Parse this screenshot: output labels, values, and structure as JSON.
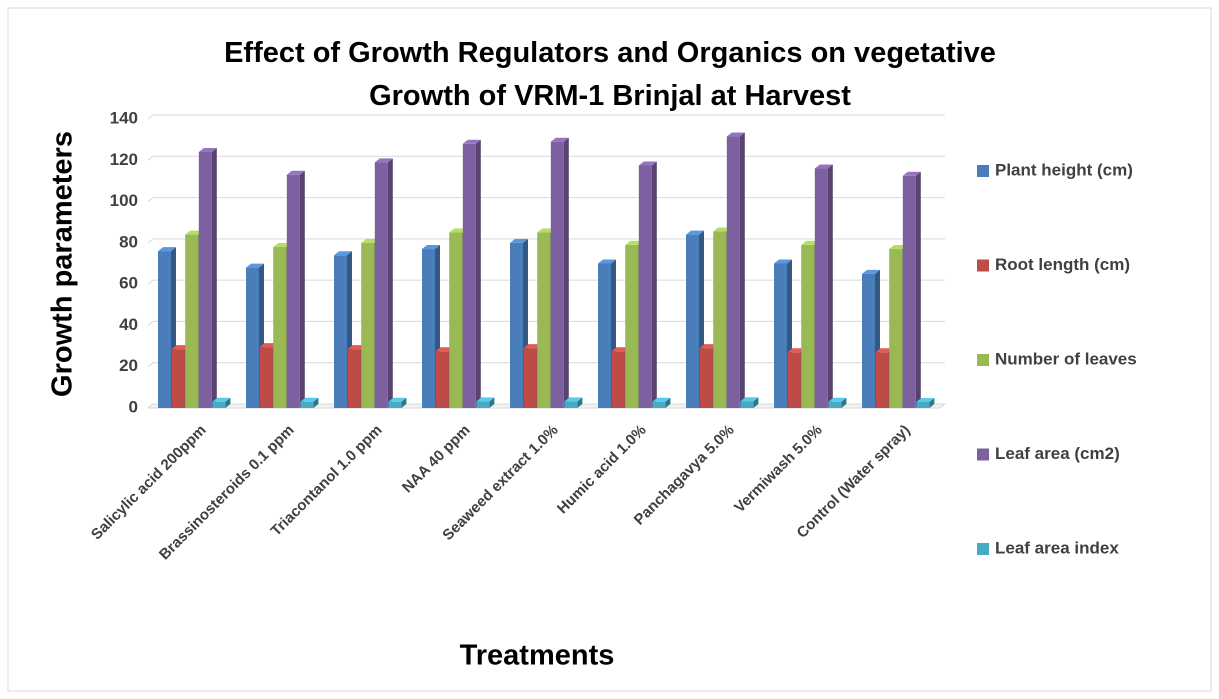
{
  "chart_data": {
    "type": "bar3d",
    "title": "Effect of Growth Regulators and Organics on vegetative Growth of VRM-1 Brinjal at Harvest",
    "x_label": "Treatments",
    "y_label": "Growth parameters",
    "categories": [
      "Salicylic acid 200ppm",
      "Brassinosteroids 0.1 ppm",
      "Triacontanol 1.0 ppm",
      "NAA 40 ppm",
      "Seaweed extract 1.0%",
      "Humic acid 1.0%",
      "Panchagavya 5.0%",
      "Vermiwash 5.0%",
      "Control (Water spray)"
    ],
    "series": [
      {
        "name": "Plant height (cm)",
        "color": "#4a7ebb",
        "values": [
          76,
          68,
          74,
          77,
          80,
          70,
          84,
          70,
          65
        ]
      },
      {
        "name": "Root length (cm)",
        "color": "#be4b48",
        "values": [
          28.5,
          29.5,
          28.5,
          27.5,
          29,
          27.5,
          29,
          27,
          27
        ]
      },
      {
        "name": "Number of leaves",
        "color": "#98b954",
        "values": [
          84,
          78,
          80,
          85,
          85,
          79,
          85.5,
          79,
          77
        ]
      },
      {
        "name": "Leaf area (cm2)",
        "color": "#7d60a0",
        "values": [
          124,
          113,
          119,
          128,
          129,
          117.5,
          131.5,
          116,
          112.5
        ]
      },
      {
        "name": "Leaf area index",
        "color": "#46aac5",
        "values": [
          3,
          3,
          3,
          3.2,
          3.2,
          3,
          3.3,
          3,
          2.9
        ]
      }
    ],
    "ylim": [
      0,
      140
    ],
    "yticks": [
      0,
      20,
      40,
      60,
      80,
      100,
      120,
      140
    ],
    "grid": true,
    "legend": "right"
  }
}
